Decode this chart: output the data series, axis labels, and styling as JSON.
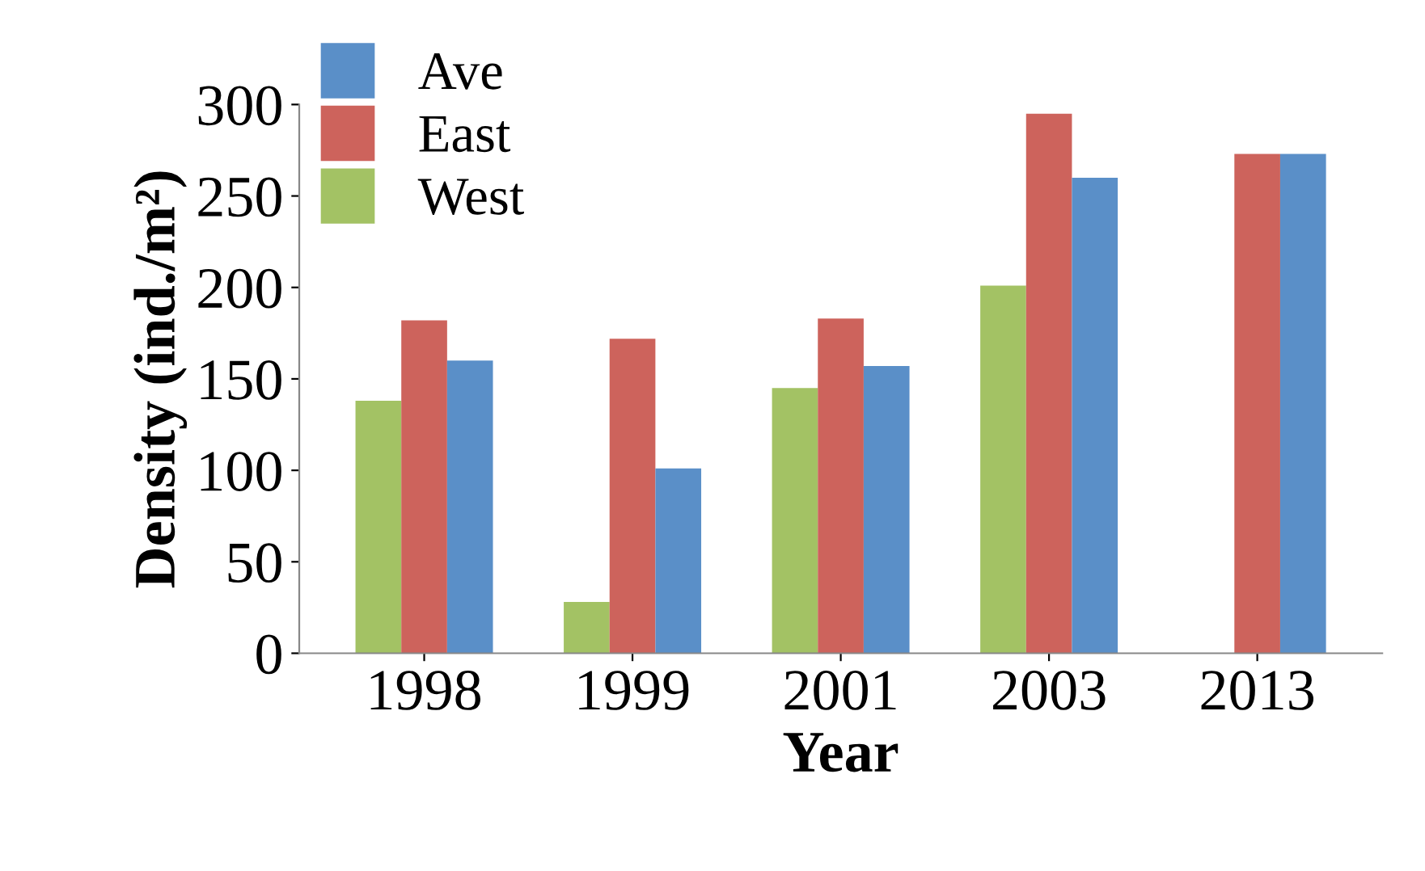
{
  "chart_data": {
    "type": "bar",
    "xlabel": "Year",
    "ylabel": "Density (ind./m²)",
    "categories": [
      "1998",
      "1999",
      "2001",
      "2003",
      "2013"
    ],
    "series": [
      {
        "name": "West",
        "color": "#a3c264",
        "values": [
          138,
          28,
          145,
          201,
          null
        ]
      },
      {
        "name": "East",
        "color": "#cd635c",
        "values": [
          182,
          172,
          183,
          295,
          273
        ]
      },
      {
        "name": "Ave",
        "color": "#5a8fc8",
        "values": [
          160,
          101,
          157,
          260,
          273
        ]
      }
    ],
    "ylim": [
      0,
      300
    ],
    "yticks": [
      0,
      50,
      100,
      150,
      200,
      250,
      300
    ],
    "grid": false,
    "legend": "top left"
  }
}
